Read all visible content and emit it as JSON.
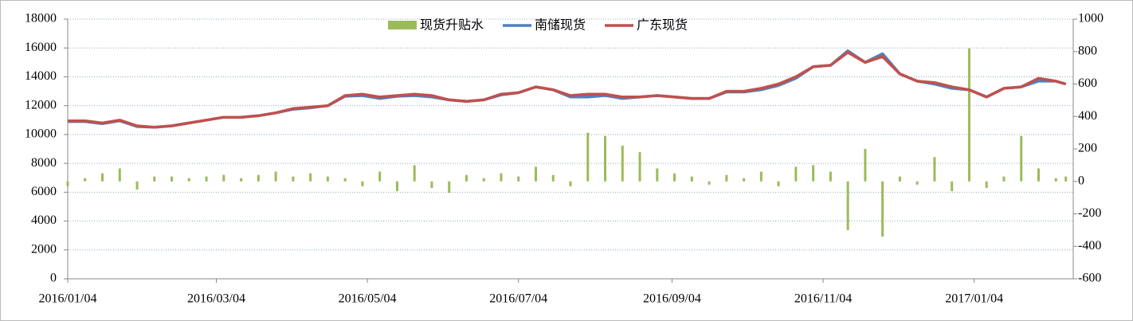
{
  "chart_data": {
    "type": "combo",
    "x": [
      "2016/01/04",
      "2016/01/11",
      "2016/01/18",
      "2016/01/25",
      "2016/02/01",
      "2016/02/08",
      "2016/02/15",
      "2016/02/22",
      "2016/02/29",
      "2016/03/07",
      "2016/03/14",
      "2016/03/21",
      "2016/03/28",
      "2016/04/04",
      "2016/04/11",
      "2016/04/18",
      "2016/04/25",
      "2016/05/02",
      "2016/05/09",
      "2016/05/16",
      "2016/05/23",
      "2016/05/30",
      "2016/06/06",
      "2016/06/13",
      "2016/06/20",
      "2016/06/27",
      "2016/07/04",
      "2016/07/11",
      "2016/07/18",
      "2016/07/25",
      "2016/08/01",
      "2016/08/08",
      "2016/08/15",
      "2016/08/22",
      "2016/08/29",
      "2016/09/05",
      "2016/09/12",
      "2016/09/19",
      "2016/09/26",
      "2016/10/03",
      "2016/10/10",
      "2016/10/17",
      "2016/10/24",
      "2016/10/31",
      "2016/11/07",
      "2016/11/14",
      "2016/11/21",
      "2016/11/28",
      "2016/12/05",
      "2016/12/12",
      "2016/12/19",
      "2016/12/26",
      "2017/01/02",
      "2017/01/09",
      "2017/01/16",
      "2017/01/23",
      "2017/01/30",
      "2017/02/06",
      "2017/02/10"
    ],
    "series": [
      {
        "name": "现货升贴水",
        "kind": "bar",
        "axis": "y2",
        "color": "#9bbb59",
        "values": [
          -30,
          20,
          50,
          80,
          -50,
          30,
          30,
          20,
          30,
          40,
          20,
          40,
          60,
          30,
          50,
          30,
          20,
          -30,
          60,
          -60,
          100,
          -40,
          -70,
          40,
          20,
          50,
          30,
          90,
          40,
          -30,
          300,
          280,
          220,
          180,
          80,
          50,
          30,
          -20,
          40,
          20,
          60,
          -30,
          90,
          100,
          60,
          -300,
          200,
          -340,
          30,
          -20,
          150,
          -60,
          820,
          -40,
          30,
          280,
          80,
          20,
          30
        ]
      },
      {
        "name": "南储现货",
        "kind": "line",
        "color": "#4f81bd",
        "values": [
          10900,
          10900,
          10750,
          10950,
          10550,
          10500,
          10600,
          10800,
          11000,
          11200,
          11200,
          11300,
          11500,
          11750,
          11850,
          12000,
          12650,
          12700,
          12500,
          12650,
          12700,
          12600,
          12400,
          12300,
          12400,
          12750,
          12900,
          13300,
          13100,
          12600,
          12600,
          12700,
          12500,
          12600,
          12700,
          12600,
          12500,
          12500,
          12950,
          12950,
          13100,
          13400,
          13900,
          14700,
          14800,
          15800,
          15000,
          15600,
          14200,
          13700,
          13500,
          13200,
          13100,
          12600,
          13200,
          13300,
          13700,
          13700,
          13500
        ]
      },
      {
        "name": "广东现货",
        "kind": "line",
        "color": "#c0504d",
        "values": [
          10950,
          10950,
          10800,
          11000,
          10600,
          10500,
          10600,
          10800,
          11000,
          11200,
          11200,
          11300,
          11500,
          11800,
          11900,
          12000,
          12700,
          12800,
          12600,
          12700,
          12800,
          12700,
          12400,
          12300,
          12400,
          12800,
          12900,
          13300,
          13100,
          12700,
          12800,
          12800,
          12600,
          12600,
          12700,
          12600,
          12500,
          12500,
          13000,
          13000,
          13200,
          13500,
          14000,
          14700,
          14800,
          15700,
          15000,
          15400,
          14200,
          13700,
          13600,
          13300,
          13100,
          12600,
          13200,
          13300,
          13900,
          13700,
          13500
        ]
      }
    ],
    "xlim": [
      "2016/01/04",
      "2017/02/13"
    ],
    "xticks": [
      "2016/01/04",
      "2016/03/04",
      "2016/05/04",
      "2016/07/04",
      "2016/09/04",
      "2016/11/04",
      "2017/01/04"
    ],
    "ylim": [
      0,
      18000
    ],
    "yticks": [
      0,
      2000,
      4000,
      6000,
      8000,
      10000,
      12000,
      14000,
      16000,
      18000
    ],
    "y2lim": [
      -600,
      1000
    ],
    "y2ticks": [
      -600,
      -400,
      -200,
      0,
      200,
      400,
      600,
      800,
      1000
    ],
    "grid": true,
    "legend": "top"
  }
}
